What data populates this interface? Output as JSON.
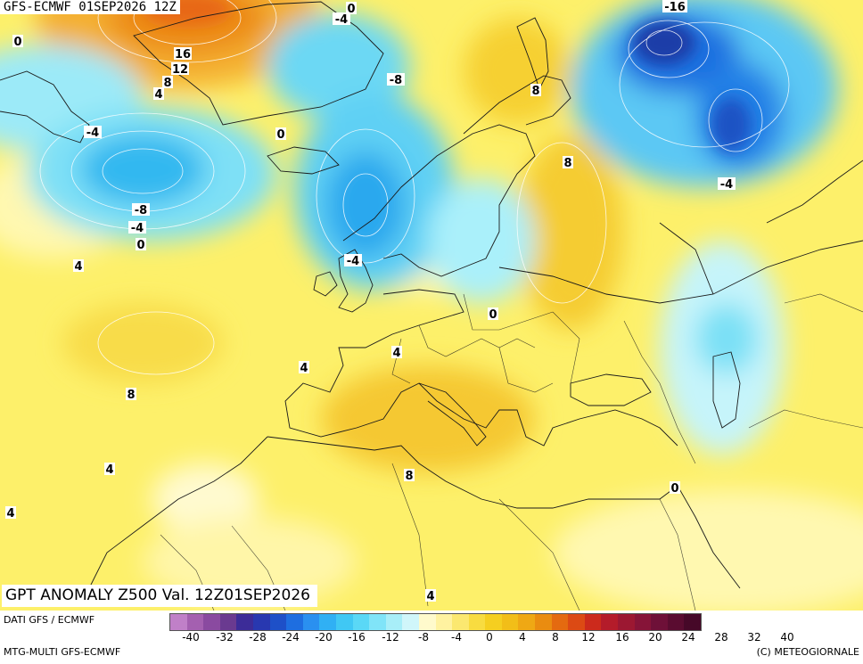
{
  "header": {
    "title": "GFS-ECMWF 01SEP2026 12Z"
  },
  "map_title": "GPT ANOMALY Z500 Val. 12Z01SEP2026",
  "footer": {
    "left_top": "DATI GFS / ECMWF",
    "left_bottom": "MTG-MULTI GFS-ECMWF",
    "right_bottom": "(C) METEOGIORNALE"
  },
  "colorbar": {
    "ticks": [
      "-40",
      "-32",
      "-28",
      "-24",
      "-20",
      "-16",
      "-12",
      "-8",
      "-4",
      "0",
      "4",
      "8",
      "12",
      "16",
      "20",
      "24",
      "28",
      "32",
      "40"
    ],
    "colors": [
      "#c080c8",
      "#a460b0",
      "#8a4aa0",
      "#6a3a90",
      "#3c2c98",
      "#2838b0",
      "#1e50c8",
      "#1e6ee0",
      "#2a90f0",
      "#30b0f4",
      "#40c8f4",
      "#5ad8f6",
      "#80e4f8",
      "#a8eef8",
      "#d0f6fa",
      "#fffacc",
      "#fff2a0",
      "#fbe870",
      "#f8dc40",
      "#f5cf20",
      "#f2be18",
      "#efa814",
      "#ea8c10",
      "#e46a10",
      "#dc4a14",
      "#cc2a1c",
      "#b41c2a",
      "#9c1832",
      "#861438",
      "#6e1038",
      "#5a0c30",
      "#460828"
    ]
  },
  "contour_labels": [
    {
      "text": "0"
    },
    {
      "text": "-4"
    },
    {
      "text": "0"
    },
    {
      "text": "16"
    },
    {
      "text": "12"
    },
    {
      "text": "8"
    },
    {
      "text": "4"
    },
    {
      "text": "-4"
    },
    {
      "text": "0"
    },
    {
      "text": "-8"
    },
    {
      "text": "8"
    },
    {
      "text": "-16"
    },
    {
      "text": "8"
    },
    {
      "text": "-4"
    },
    {
      "text": "-8"
    },
    {
      "text": "-4"
    },
    {
      "text": "0"
    },
    {
      "text": "4"
    },
    {
      "text": "-4"
    },
    {
      "text": "0"
    },
    {
      "text": "4"
    },
    {
      "text": "4"
    },
    {
      "text": "8"
    },
    {
      "text": "4"
    },
    {
      "text": "4"
    },
    {
      "text": "8"
    },
    {
      "text": "0"
    },
    {
      "text": "4"
    }
  ]
}
